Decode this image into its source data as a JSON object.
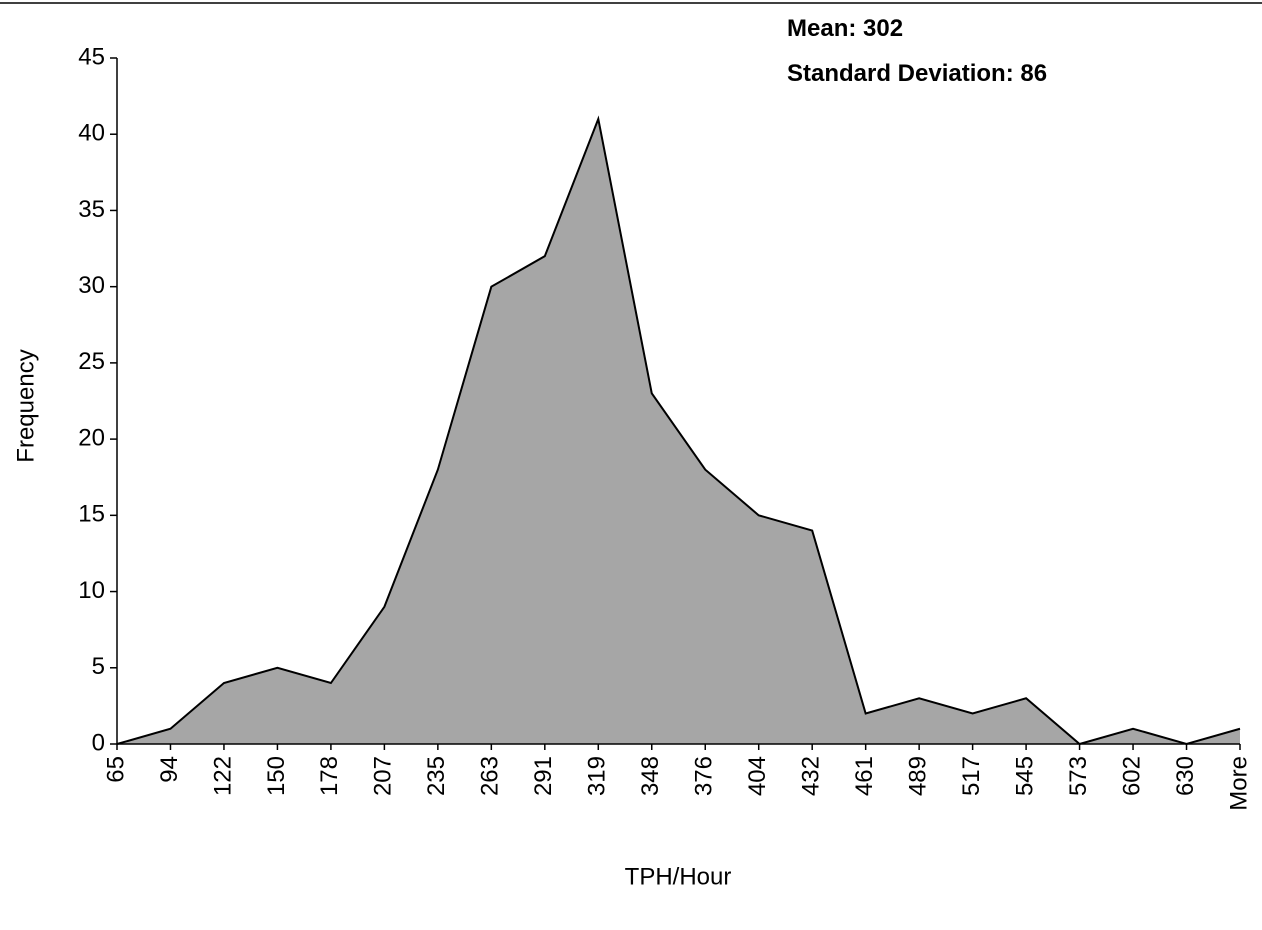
{
  "chart_data": {
    "type": "area",
    "annotations": [
      "Mean: 302",
      "Standard Deviation: 86"
    ],
    "x_label": "TPH/Hour",
    "y_label": "Frequency",
    "categories": [
      "65",
      "94",
      "122",
      "150",
      "178",
      "207",
      "235",
      "263",
      "291",
      "319",
      "348",
      "376",
      "404",
      "432",
      "461",
      "489",
      "517",
      "545",
      "573",
      "602",
      "630",
      "More"
    ],
    "values": [
      0,
      1,
      4,
      5,
      4,
      9,
      18,
      30,
      32,
      41,
      23,
      18,
      15,
      14,
      2,
      3,
      2,
      3,
      0,
      1,
      0,
      1
    ],
    "color": "#a6a6a6",
    "ylim": [
      0,
      45
    ],
    "yticks": [
      0,
      5,
      10,
      15,
      20,
      25,
      30,
      35,
      40,
      45
    ]
  }
}
